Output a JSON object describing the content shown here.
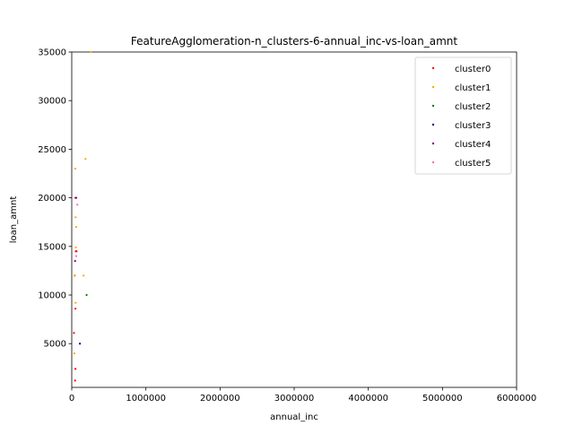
{
  "chart_data": {
    "type": "scatter",
    "title": "FeatureAgglomeration-n_clusters-6-annual_inc-vs-loan_amnt",
    "xlabel": "annual_inc",
    "ylabel": "loan_amnt",
    "xlim": [
      0,
      6000000
    ],
    "ylim": [
      500,
      35000
    ],
    "x_ticks": [
      0,
      1000000,
      2000000,
      3000000,
      4000000,
      5000000,
      6000000
    ],
    "y_ticks": [
      5000,
      10000,
      15000,
      20000,
      25000,
      30000,
      35000
    ],
    "grid": false,
    "legend_position": "top-right",
    "series": [
      {
        "name": "cluster0",
        "color": "#ff0000",
        "points": [
          [
            50000,
            20000
          ],
          [
            55000,
            14500
          ],
          [
            65000,
            14500
          ],
          [
            50000,
            8600
          ],
          [
            30000,
            6100
          ],
          [
            50000,
            2400
          ],
          [
            45000,
            1200
          ],
          [
            40000,
            12000
          ]
        ]
      },
      {
        "name": "cluster1",
        "color": "#ffa500",
        "points": [
          [
            48000,
            23000
          ],
          [
            185000,
            24000
          ],
          [
            52000,
            18000
          ],
          [
            60000,
            17000
          ],
          [
            55000,
            14900
          ],
          [
            40000,
            12000
          ],
          [
            160000,
            12000
          ],
          [
            52000,
            9200
          ],
          [
            35000,
            4000
          ],
          [
            260000,
            35000
          ]
        ]
      },
      {
        "name": "cluster2",
        "color": "#008000",
        "points": [
          [
            200000,
            10000
          ]
        ]
      },
      {
        "name": "cluster3",
        "color": "#00008b",
        "points": [
          [
            110000,
            5000
          ]
        ]
      },
      {
        "name": "cluster4",
        "color": "#800080",
        "points": [
          [
            45000,
            13500
          ],
          [
            60000,
            20000
          ]
        ]
      },
      {
        "name": "cluster5",
        "color": "#ff69b4",
        "points": [
          [
            75000,
            19300
          ],
          [
            60000,
            14000
          ]
        ]
      }
    ]
  }
}
